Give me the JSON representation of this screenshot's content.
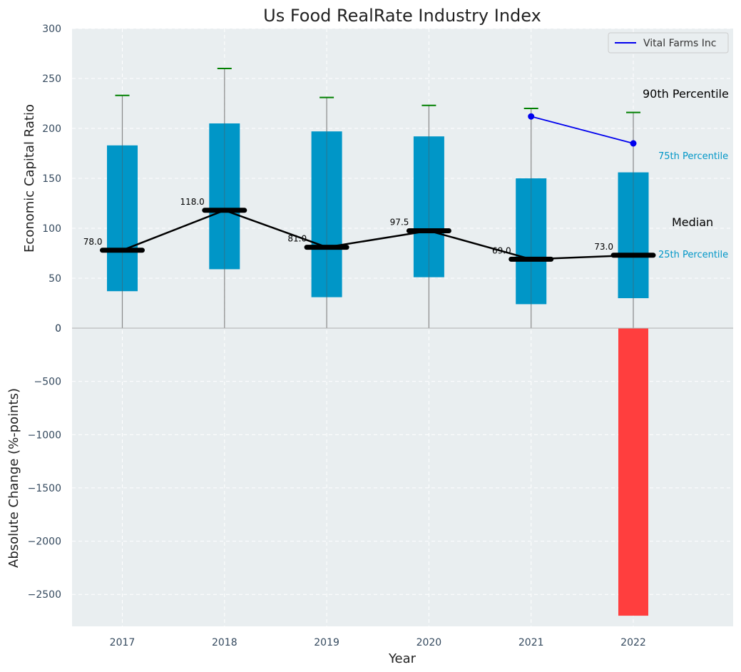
{
  "chart_data": {
    "type": "box-bar",
    "title": "Us Food RealRate Industry Index",
    "xlabel": "Year",
    "categories": [
      "2017",
      "2018",
      "2019",
      "2020",
      "2021",
      "2022"
    ],
    "top_panel": {
      "ylabel": "Economic Capital Ratio",
      "ylim": [
        0,
        300
      ],
      "yticks": [
        0,
        50,
        100,
        150,
        200,
        250,
        300
      ],
      "extra_tick_label": "0",
      "p25": [
        37,
        59,
        31,
        51,
        24,
        30
      ],
      "median": [
        78.0,
        118.0,
        81.0,
        97.5,
        69.0,
        73.0
      ],
      "p75": [
        183,
        205,
        197,
        192,
        150,
        156
      ],
      "p90": [
        233,
        260,
        231,
        223,
        220,
        216
      ],
      "median_labels": [
        "78.0",
        "118.0",
        "81.0",
        "97.5",
        "69.0",
        "73.0"
      ],
      "company_series": {
        "name": "Vital Farms Inc",
        "years": [
          "2021",
          "2022"
        ],
        "values": [
          212,
          185
        ],
        "color": "#0000ee"
      },
      "annotations": {
        "p90": "90th Percentile",
        "p75": "75th Percentile",
        "median": "Median",
        "p25": "25th Percentile"
      },
      "box_color": "#0096c7",
      "whisker_cap_color": "#008000",
      "median_color": "#000000"
    },
    "bottom_panel": {
      "ylabel": "Absolute Change (%-points)",
      "ylim": [
        -2800,
        0
      ],
      "yticks": [
        -2500,
        -2000,
        -1500,
        -1000,
        -500
      ],
      "yticks_labels": [
        "−2500",
        "−2000",
        "−1500",
        "−1000",
        "−500"
      ],
      "values": [
        0,
        0,
        0,
        0,
        0,
        -2700
      ],
      "bar_color": "#ff3e3e"
    },
    "background": "#e9eef0",
    "grid": true,
    "legend_position": "top-right"
  }
}
